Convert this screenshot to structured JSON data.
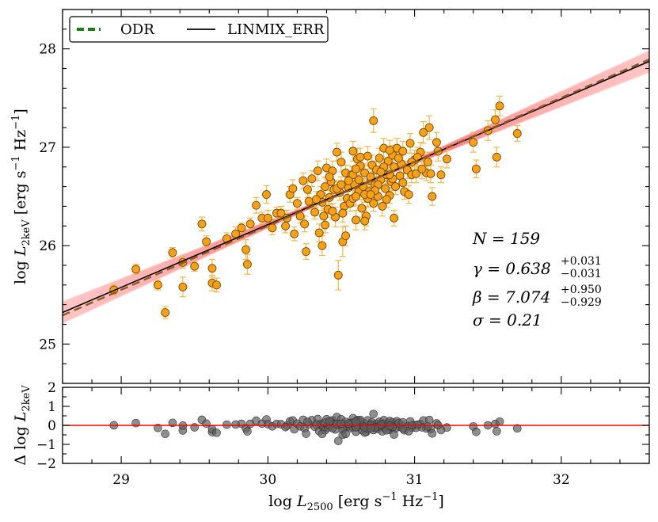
{
  "chart_data": [
    {
      "type": "scatter",
      "panel": "main",
      "xlabel": "log L_2500 [erg s^-1 Hz^-1]",
      "ylabel": "log L_2keV [erg s^-1 Hz^-1]",
      "ylabel_parts": {
        "prefix": "log ",
        "var": "L",
        "sub": "2keV",
        "units": " [erg s",
        "exp1": "−1",
        "mid": " Hz",
        "exp2": "−1",
        "close": "]"
      },
      "xlim": [
        28.6,
        32.6
      ],
      "ylim": [
        24.6,
        28.4
      ],
      "xticks": [
        29,
        30,
        31,
        32
      ],
      "yticks": [
        25,
        26,
        27,
        28
      ],
      "xtick_labels": [
        "29",
        "30",
        "31",
        "32"
      ],
      "ytick_labels": [
        "25",
        "26",
        "27",
        "28"
      ],
      "legend": {
        "position": "top-left",
        "entries": [
          {
            "label": "ODR",
            "style": "dashed",
            "color": "#1a7f1a"
          },
          {
            "label": "LINMIX_ERR",
            "style": "solid",
            "color": "#000000"
          }
        ]
      },
      "fit": {
        "slope": 0.638,
        "intercept": 7.074
      },
      "annotations": {
        "n": "N = 159",
        "gamma_main": "γ = 0.638",
        "gamma_up": "+0.031",
        "gamma_lo": "−0.031",
        "beta_main": "β = 7.074",
        "beta_up": "+0.950",
        "beta_lo": "−0.929",
        "sigma": "σ = 0.21"
      },
      "points": [
        [
          28.95,
          25.55,
          0.05
        ],
        [
          29.1,
          25.76,
          0.05
        ],
        [
          29.25,
          25.6,
          0.05
        ],
        [
          29.3,
          25.32,
          0.06
        ],
        [
          29.35,
          25.93,
          0.05
        ],
        [
          29.42,
          25.58,
          0.1
        ],
        [
          29.42,
          25.83,
          0.06
        ],
        [
          29.5,
          25.79,
          0.05
        ],
        [
          29.55,
          26.22,
          0.07
        ],
        [
          29.58,
          26.04,
          0.06
        ],
        [
          29.62,
          25.62,
          0.08
        ],
        [
          29.62,
          25.77,
          0.09
        ],
        [
          29.65,
          25.6,
          0.07
        ],
        [
          29.72,
          26.07,
          0.06
        ],
        [
          29.78,
          26.12,
          0.07
        ],
        [
          29.82,
          26.18,
          0.05
        ],
        [
          29.85,
          25.96,
          0.1
        ],
        [
          29.86,
          25.81,
          0.1
        ],
        [
          29.88,
          26.22,
          0.06
        ],
        [
          29.92,
          26.41,
          0.08
        ],
        [
          29.96,
          26.28,
          0.06
        ],
        [
          29.99,
          26.52,
          0.09
        ],
        [
          30.0,
          26.28,
          0.08
        ],
        [
          30.03,
          26.18,
          0.07
        ],
        [
          30.06,
          26.33,
          0.06
        ],
        [
          30.09,
          26.33,
          0.07
        ],
        [
          30.13,
          26.28,
          0.08
        ],
        [
          30.15,
          26.52,
          0.08
        ],
        [
          30.17,
          26.58,
          0.09
        ],
        [
          30.18,
          26.12,
          0.07
        ],
        [
          30.2,
          26.43,
          0.06
        ],
        [
          30.22,
          26.3,
          0.07
        ],
        [
          30.24,
          26.66,
          0.08
        ],
        [
          30.25,
          26.22,
          0.08
        ],
        [
          30.26,
          25.94,
          0.08
        ],
        [
          30.28,
          26.45,
          0.08
        ],
        [
          30.3,
          26.68,
          0.08
        ],
        [
          30.32,
          26.34,
          0.07
        ],
        [
          30.34,
          26.76,
          0.1
        ],
        [
          30.35,
          26.13,
          0.09
        ],
        [
          30.36,
          26.52,
          0.08
        ],
        [
          30.37,
          26.44,
          0.08
        ],
        [
          30.38,
          26.3,
          0.08
        ],
        [
          30.39,
          26.21,
          0.08
        ],
        [
          30.4,
          26.79,
          0.09
        ],
        [
          30.41,
          26.37,
          0.08
        ],
        [
          30.42,
          26.49,
          0.07
        ],
        [
          30.43,
          26.65,
          0.09
        ],
        [
          30.44,
          26.76,
          0.1
        ],
        [
          30.45,
          26.57,
          0.08
        ],
        [
          30.46,
          26.29,
          0.1
        ],
        [
          30.47,
          26.95,
          0.09
        ],
        [
          30.48,
          25.7,
          0.15
        ],
        [
          30.49,
          26.54,
          0.08
        ],
        [
          30.5,
          26.85,
          0.1
        ],
        [
          30.51,
          26.04,
          0.15
        ],
        [
          30.52,
          26.4,
          0.08
        ],
        [
          30.53,
          26.74,
          0.08
        ],
        [
          30.54,
          26.48,
          0.09
        ],
        [
          30.55,
          26.59,
          0.08
        ],
        [
          30.56,
          26.43,
          0.08
        ],
        [
          30.57,
          26.72,
          0.09
        ],
        [
          30.58,
          26.96,
          0.1
        ],
        [
          30.58,
          26.48,
          0.08
        ],
        [
          30.59,
          26.62,
          0.09
        ],
        [
          30.6,
          26.26,
          0.1
        ],
        [
          30.61,
          26.88,
          0.11
        ],
        [
          30.62,
          26.67,
          0.08
        ],
        [
          30.62,
          26.55,
          0.08
        ],
        [
          30.63,
          26.81,
          0.09
        ],
        [
          30.64,
          26.38,
          0.09
        ],
        [
          30.65,
          26.6,
          0.08
        ],
        [
          30.66,
          26.74,
          0.09
        ],
        [
          30.67,
          26.3,
          0.1
        ],
        [
          30.68,
          26.91,
          0.1
        ],
        [
          30.69,
          26.55,
          0.09
        ],
        [
          30.7,
          26.66,
          0.08
        ],
        [
          30.71,
          26.82,
          0.1
        ],
        [
          30.72,
          26.43,
          0.08
        ],
        [
          30.72,
          27.27,
          0.12
        ],
        [
          30.73,
          26.62,
          0.08
        ],
        [
          30.74,
          26.77,
          0.09
        ],
        [
          30.75,
          26.5,
          0.08
        ],
        [
          30.76,
          26.89,
          0.1
        ],
        [
          30.77,
          26.67,
          0.09
        ],
        [
          30.78,
          26.4,
          0.1
        ],
        [
          30.79,
          26.99,
          0.1
        ],
        [
          30.8,
          26.58,
          0.08
        ],
        [
          30.81,
          26.72,
          0.09
        ],
        [
          30.82,
          26.86,
          0.09
        ],
        [
          30.83,
          26.51,
          0.08
        ],
        [
          30.84,
          26.65,
          0.09
        ],
        [
          30.85,
          26.92,
          0.1
        ],
        [
          30.86,
          26.8,
          0.09
        ],
        [
          30.87,
          26.6,
          0.08
        ],
        [
          30.88,
          26.99,
          0.1
        ],
        [
          30.9,
          26.71,
          0.09
        ],
        [
          30.91,
          26.83,
          0.09
        ],
        [
          30.93,
          26.55,
          0.08
        ],
        [
          30.95,
          26.77,
          0.09
        ],
        [
          30.97,
          27.04,
          0.1
        ],
        [
          30.98,
          26.72,
          0.08
        ],
        [
          31.0,
          26.87,
          0.1
        ],
        [
          31.01,
          26.73,
          0.09
        ],
        [
          31.04,
          26.95,
          0.1
        ],
        [
          31.06,
          27.15,
          0.11
        ],
        [
          31.08,
          26.74,
          0.08
        ],
        [
          31.1,
          27.2,
          0.12
        ],
        [
          31.11,
          26.73,
          0.09
        ],
        [
          31.12,
          26.5,
          0.09
        ],
        [
          31.15,
          27.05,
          0.1
        ],
        [
          31.18,
          26.72,
          0.08
        ],
        [
          31.22,
          26.88,
          0.09
        ],
        [
          31.4,
          27.05,
          0.1
        ],
        [
          31.42,
          26.78,
          0.09
        ],
        [
          31.5,
          27.17,
          0.1
        ],
        [
          31.55,
          27.28,
          0.1
        ],
        [
          31.56,
          26.9,
          0.1
        ],
        [
          31.58,
          27.42,
          0.1
        ],
        [
          31.7,
          27.14,
          0.08
        ],
        [
          30.51,
          26.33,
          0.09
        ],
        [
          30.66,
          26.25,
          0.09
        ],
        [
          30.86,
          26.28,
          0.08
        ],
        [
          30.96,
          26.52,
          0.09
        ],
        [
          31.05,
          26.78,
          0.1
        ],
        [
          30.12,
          26.2,
          0.07
        ],
        [
          30.27,
          26.57,
          0.08
        ],
        [
          30.39,
          26.6,
          0.09
        ],
        [
          30.53,
          26.1,
          0.1
        ],
        [
          30.6,
          26.5,
          0.09
        ],
        [
          30.7,
          26.7,
          0.08
        ],
        [
          30.79,
          26.8,
          0.09
        ],
        [
          30.44,
          26.35,
          0.08
        ],
        [
          30.58,
          26.72,
          0.08
        ],
        [
          30.68,
          26.48,
          0.09
        ],
        [
          30.75,
          26.62,
          0.08
        ],
        [
          30.83,
          26.97,
          0.1
        ],
        [
          30.92,
          26.64,
          0.09
        ],
        [
          31.02,
          26.9,
          0.1
        ],
        [
          31.16,
          26.96,
          0.1
        ],
        [
          30.33,
          26.47,
          0.08
        ],
        [
          30.47,
          26.58,
          0.08
        ],
        [
          30.63,
          26.9,
          0.09
        ],
        [
          30.77,
          26.75,
          0.09
        ],
        [
          30.89,
          26.89,
          0.1
        ],
        [
          30.37,
          26.0,
          0.1
        ],
        [
          30.55,
          26.66,
          0.08
        ],
        [
          30.73,
          26.56,
          0.08
        ],
        [
          30.81,
          26.47,
          0.08
        ],
        [
          30.92,
          26.96,
          0.1
        ],
        [
          30.42,
          26.7,
          0.09
        ],
        [
          30.6,
          26.78,
          0.09
        ],
        [
          30.66,
          26.52,
          0.08
        ],
        [
          30.85,
          26.68,
          0.09
        ],
        [
          31.09,
          26.85,
          0.1
        ],
        [
          30.5,
          26.62,
          0.08
        ],
        [
          30.7,
          26.52,
          0.08
        ],
        [
          30.83,
          26.72,
          0.09
        ],
        [
          30.98,
          26.85,
          0.09
        ]
      ]
    },
    {
      "type": "scatter",
      "panel": "residuals",
      "ylabel": "Δ log L_2keV",
      "ylabel_parts": {
        "prefix": "Δ log ",
        "var": "L",
        "sub": "2keV"
      },
      "xlabel_parts": {
        "prefix": "log ",
        "var": "L",
        "sub": "2500",
        "units": " [erg s",
        "exp1": "−1",
        "mid": " Hz",
        "exp2": "−1",
        "close": "]"
      },
      "ylim": [
        -2,
        2
      ],
      "yticks": [
        -2,
        -1,
        0,
        1,
        2
      ],
      "ytick_labels": [
        "−2",
        "−1",
        "0",
        "1",
        "2"
      ],
      "zero_line_color": "#ff0000"
    }
  ],
  "colors": {
    "points": "#f5a11a",
    "errorbars": "#f5b74a",
    "band": "#ff5a5a",
    "residuals": "#606060"
  }
}
